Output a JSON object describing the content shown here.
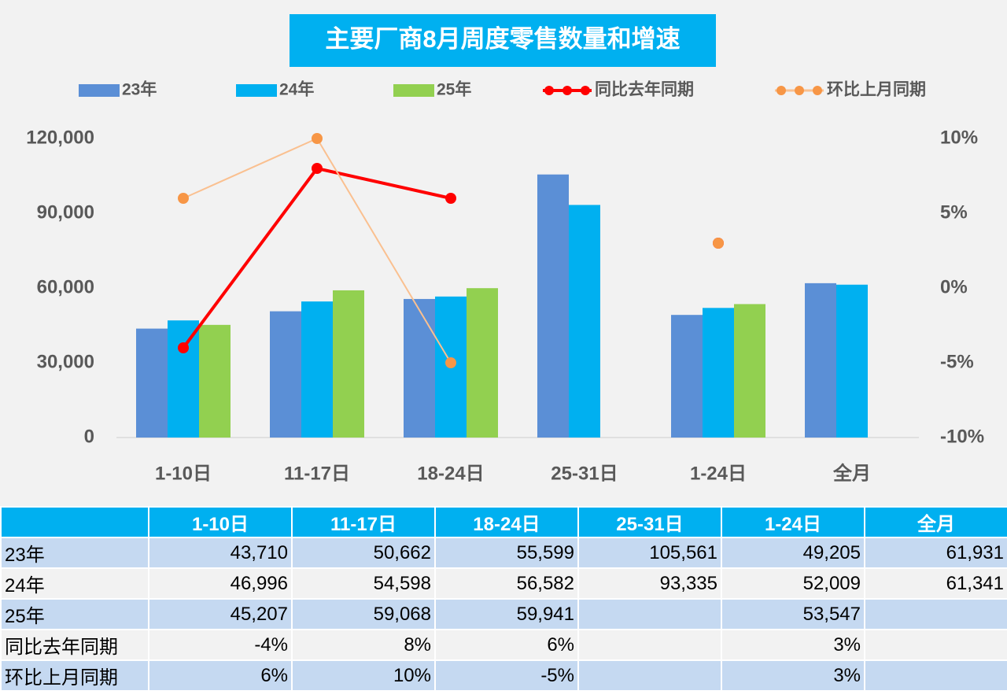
{
  "chart_data": {
    "type": "bar-line",
    "title": "主要厂商8月周度零售数量和增速",
    "categories": [
      "1-10日",
      "11-17日",
      "18-24日",
      "25-31日",
      "1-24日",
      "全月"
    ],
    "series": [
      {
        "name": "23年",
        "type": "bar",
        "color": "#5b8fd6",
        "values": [
          43710,
          50662,
          55599,
          105561,
          49205,
          61931
        ]
      },
      {
        "name": "24年",
        "type": "bar",
        "color": "#00b0f0",
        "values": [
          46996,
          54598,
          56582,
          93335,
          52009,
          61341
        ]
      },
      {
        "name": "25年",
        "type": "bar",
        "color": "#92d050",
        "values": [
          45207,
          59068,
          59941,
          null,
          53547,
          null
        ]
      },
      {
        "name": "同比去年同期",
        "type": "line",
        "axis": "y2",
        "color": "#ff0000",
        "marker_color": "#ff0000",
        "values": [
          -4,
          8,
          6,
          null,
          3,
          null
        ]
      },
      {
        "name": "环比上月同期",
        "type": "line",
        "axis": "y2",
        "color": "#fac090",
        "marker_color": "#f79646",
        "values": [
          6,
          10,
          -5,
          null,
          3,
          null
        ]
      }
    ],
    "ylim": [
      0,
      120000
    ],
    "yticks": [
      0,
      {
        "value": 30000,
        "label": "30,000"
      },
      {
        "value": 60000,
        "label": "60,000"
      },
      {
        "value": 90000,
        "label": "90,000"
      },
      {
        "value": 120000,
        "label": "120,000"
      }
    ],
    "y2lim": [
      -10,
      10
    ],
    "y2ticks": [
      {
        "value": -10,
        "label": "-10%"
      },
      {
        "value": -5,
        "label": "-5%"
      },
      {
        "value": 0,
        "label": "0%"
      },
      {
        "value": 5,
        "label": "5%"
      },
      {
        "value": 10,
        "label": "10%"
      }
    ],
    "legend": "top"
  },
  "table": {
    "rows": [
      [
        "43,710",
        "50,662",
        "55,599",
        "105,561",
        "49,205",
        "61,931"
      ],
      [
        "46,996",
        "54,598",
        "56,582",
        "93,335",
        "52,009",
        "61,341"
      ],
      [
        "45,207",
        "59,068",
        "59,941",
        null,
        "53,547",
        null
      ],
      [
        "-4%",
        "8%",
        "6%",
        null,
        "3%",
        null
      ],
      [
        "6%",
        "10%",
        "-5%",
        null,
        "3%",
        null
      ]
    ]
  }
}
